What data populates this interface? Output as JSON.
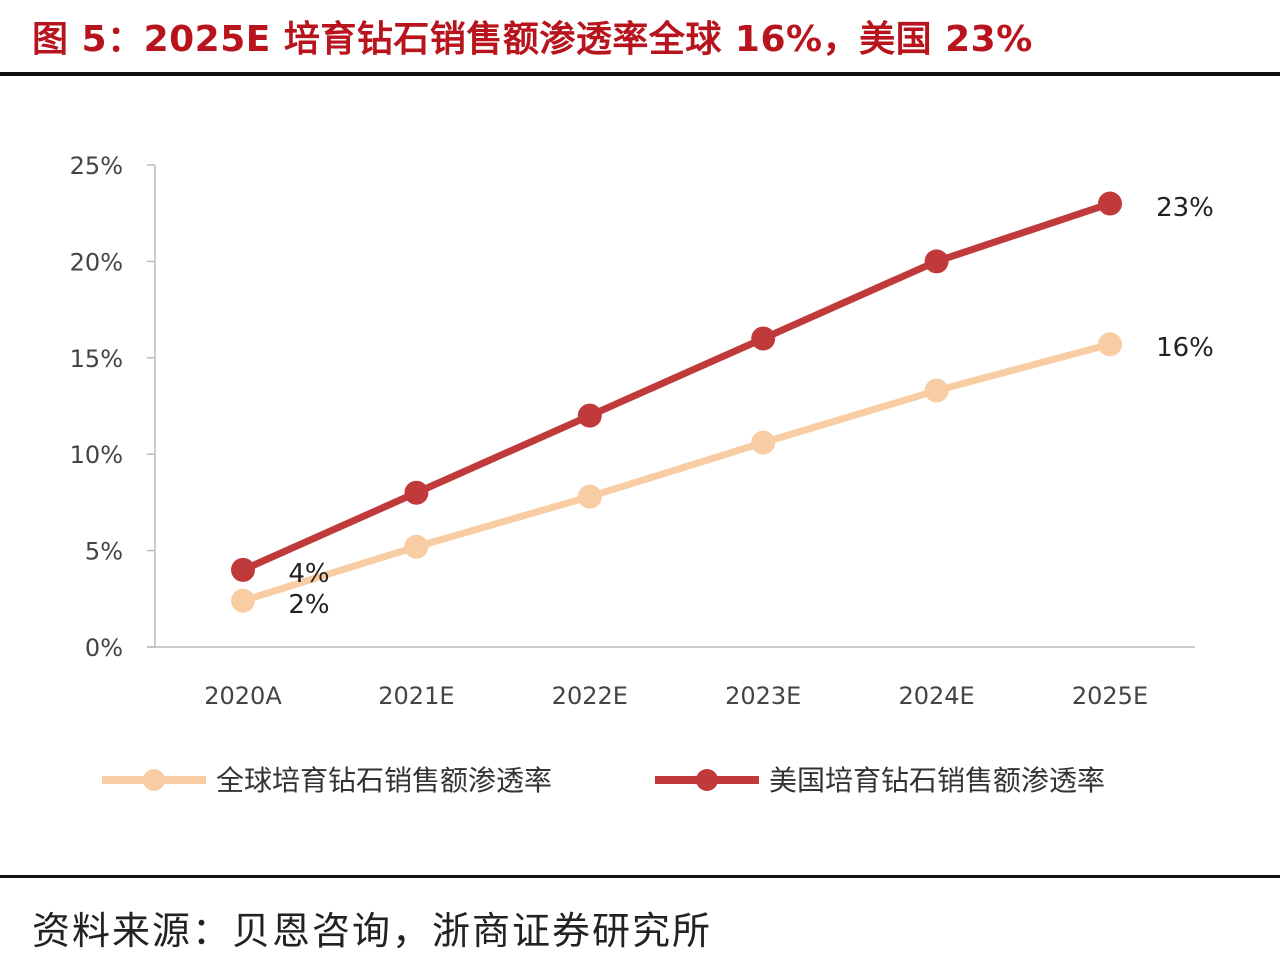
{
  "title": "图 5：2025E 培育钻石销售额渗透率全球 16%，美国 23%",
  "source": "资料来源：贝恩咨询，浙商证券研究所",
  "chart_data": {
    "type": "line",
    "categories": [
      "2020A",
      "2021E",
      "2022E",
      "2023E",
      "2024E",
      "2025E"
    ],
    "ylim": [
      0,
      25
    ],
    "yticks": [
      0,
      5,
      10,
      15,
      20,
      25
    ],
    "ytick_labels": [
      "0%",
      "5%",
      "10%",
      "15%",
      "20%",
      "25%"
    ],
    "grid": false,
    "legend_position": "bottom",
    "series": [
      {
        "name": "全球培育钻石销售额渗透率",
        "color": "#F9CDA4",
        "values": [
          2.4,
          5.2,
          7.8,
          10.6,
          13.3,
          15.7
        ],
        "data_labels": {
          "0": "2%",
          "5": "16%"
        }
      },
      {
        "name": "美国培育钻石销售额渗透率",
        "color": "#C0393B",
        "values": [
          4.0,
          8.0,
          12.0,
          16.0,
          20.0,
          23.0
        ],
        "data_labels": {
          "0": "4%",
          "5": "23%"
        }
      }
    ]
  }
}
